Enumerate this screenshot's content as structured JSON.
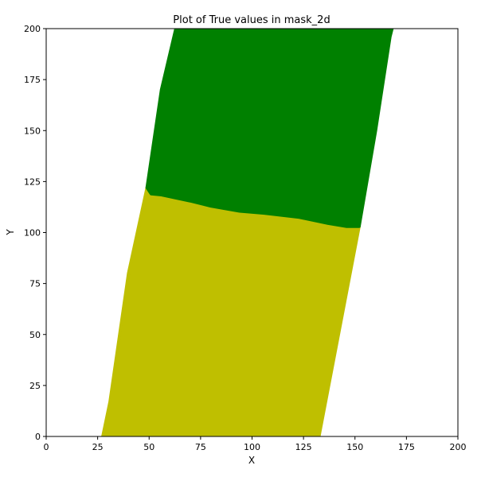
{
  "chart_data": {
    "type": "scatter",
    "title": "Plot of True values in mask_2d",
    "xlabel": "X",
    "ylabel": "Y",
    "xlim": [
      0,
      200
    ],
    "ylim": [
      0,
      200
    ],
    "x_ticks": [
      0,
      25,
      50,
      75,
      100,
      125,
      150,
      175,
      200
    ],
    "y_ticks": [
      0,
      25,
      50,
      75,
      100,
      125,
      150,
      175,
      200
    ],
    "grid": false,
    "series": [
      {
        "color": "#bfbf00",
        "description": "lower region",
        "polygon": [
          [
            27.5,
            0
          ],
          [
            132.5,
            0
          ],
          [
            152,
            103
          ],
          [
            146,
            103
          ],
          [
            137,
            104.5
          ],
          [
            123,
            107.5
          ],
          [
            106,
            109.5
          ],
          [
            94,
            110.5
          ],
          [
            80,
            113
          ],
          [
            70,
            115.5
          ],
          [
            56,
            118.5
          ],
          [
            51,
            119
          ],
          [
            49,
            122
          ],
          [
            40,
            80
          ],
          [
            31,
            17
          ]
        ]
      },
      {
        "color": "#008000",
        "description": "upper region",
        "polygon": [
          [
            49,
            122
          ],
          [
            51,
            119
          ],
          [
            56,
            118.5
          ],
          [
            70,
            115.5
          ],
          [
            80,
            113
          ],
          [
            94,
            110.5
          ],
          [
            106,
            109.5
          ],
          [
            123,
            107.5
          ],
          [
            137,
            104.5
          ],
          [
            146,
            103
          ],
          [
            152,
            103
          ],
          [
            160,
            150
          ],
          [
            167,
            196
          ],
          [
            168,
            200
          ],
          [
            63,
            200
          ],
          [
            56,
            170
          ]
        ]
      }
    ]
  }
}
